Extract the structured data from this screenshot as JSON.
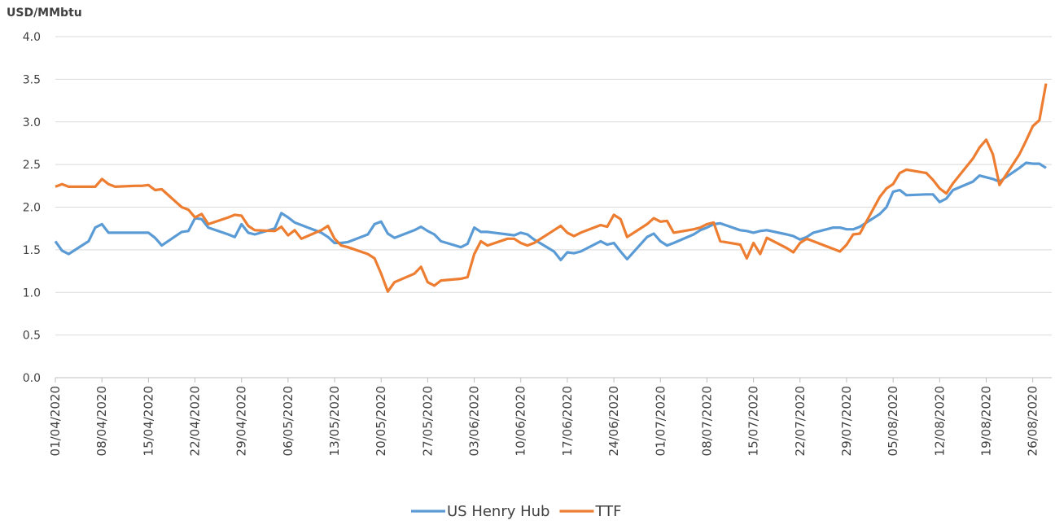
{
  "chart_data": {
    "type": "line",
    "y_label": "USD/MMbtu",
    "x": [
      "01/04/2020",
      "02/04/2020",
      "03/04/2020",
      "06/04/2020",
      "07/04/2020",
      "08/04/2020",
      "09/04/2020",
      "10/04/2020",
      "13/04/2020",
      "14/04/2020",
      "15/04/2020",
      "16/04/2020",
      "17/04/2020",
      "20/04/2020",
      "21/04/2020",
      "22/04/2020",
      "23/04/2020",
      "24/04/2020",
      "27/04/2020",
      "28/04/2020",
      "29/04/2020",
      "30/04/2020",
      "01/05/2020",
      "04/05/2020",
      "05/05/2020",
      "06/05/2020",
      "07/05/2020",
      "08/05/2020",
      "11/05/2020",
      "12/05/2020",
      "13/05/2020",
      "14/05/2020",
      "15/05/2020",
      "18/05/2020",
      "19/05/2020",
      "20/05/2020",
      "21/05/2020",
      "22/05/2020",
      "25/05/2020",
      "26/05/2020",
      "27/05/2020",
      "28/05/2020",
      "29/05/2020",
      "01/06/2020",
      "02/06/2020",
      "03/06/2020",
      "04/06/2020",
      "05/06/2020",
      "08/06/2020",
      "09/06/2020",
      "10/06/2020",
      "11/06/2020",
      "12/06/2020",
      "15/06/2020",
      "16/06/2020",
      "17/06/2020",
      "18/06/2020",
      "19/06/2020",
      "22/06/2020",
      "23/06/2020",
      "24/06/2020",
      "25/06/2020",
      "26/06/2020",
      "29/06/2020",
      "30/06/2020",
      "01/07/2020",
      "02/07/2020",
      "03/07/2020",
      "06/07/2020",
      "07/07/2020",
      "08/07/2020",
      "09/07/2020",
      "10/07/2020",
      "13/07/2020",
      "14/07/2020",
      "15/07/2020",
      "16/07/2020",
      "17/07/2020",
      "20/07/2020",
      "21/07/2020",
      "22/07/2020",
      "23/07/2020",
      "24/07/2020",
      "27/07/2020",
      "28/07/2020",
      "29/07/2020",
      "30/07/2020",
      "31/07/2020",
      "03/08/2020",
      "04/08/2020",
      "05/08/2020",
      "06/08/2020",
      "07/08/2020",
      "10/08/2020",
      "11/08/2020",
      "12/08/2020",
      "13/08/2020",
      "14/08/2020",
      "17/08/2020",
      "18/08/2020",
      "19/08/2020",
      "20/08/2020",
      "21/08/2020",
      "24/08/2020",
      "25/08/2020",
      "26/08/2020",
      "27/08/2020",
      "28/08/2020"
    ],
    "series": [
      {
        "name": "US Henry Hub",
        "color": "#5b9bd5",
        "values": [
          1.6,
          1.49,
          1.45,
          1.6,
          1.76,
          1.8,
          1.7,
          1.7,
          1.7,
          1.7,
          1.7,
          1.64,
          1.55,
          1.71,
          1.72,
          1.87,
          1.86,
          1.76,
          1.68,
          1.65,
          1.8,
          1.7,
          1.68,
          1.75,
          1.93,
          1.88,
          1.82,
          1.79,
          1.7,
          1.65,
          1.58,
          1.58,
          1.59,
          1.68,
          1.8,
          1.83,
          1.69,
          1.64,
          1.73,
          1.77,
          1.72,
          1.68,
          1.6,
          1.53,
          1.57,
          1.76,
          1.71,
          1.71,
          1.68,
          1.67,
          1.7,
          1.68,
          1.62,
          1.48,
          1.38,
          1.47,
          1.46,
          1.48,
          1.6,
          1.56,
          1.58,
          1.48,
          1.39,
          1.65,
          1.69,
          1.6,
          1.55,
          1.58,
          1.68,
          1.73,
          1.76,
          1.8,
          1.81,
          1.73,
          1.72,
          1.7,
          1.72,
          1.73,
          1.68,
          1.66,
          1.62,
          1.65,
          1.7,
          1.76,
          1.76,
          1.74,
          1.74,
          1.77,
          1.92,
          2.0,
          2.18,
          2.2,
          2.14,
          2.15,
          2.15,
          2.06,
          2.1,
          2.2,
          2.3,
          2.37,
          2.35,
          2.33,
          2.3,
          2.46,
          2.52,
          2.51,
          2.51,
          2.46
        ]
      },
      {
        "name": "TTF",
        "color": "#ed7d31",
        "values": [
          2.24,
          2.27,
          2.24,
          2.24,
          2.24,
          2.33,
          2.27,
          2.24,
          2.25,
          2.25,
          2.26,
          2.2,
          2.21,
          2.0,
          1.97,
          1.88,
          1.92,
          1.8,
          1.88,
          1.91,
          1.9,
          1.78,
          1.73,
          1.72,
          1.77,
          1.67,
          1.73,
          1.63,
          1.73,
          1.78,
          1.63,
          1.55,
          1.53,
          1.45,
          1.4,
          1.22,
          1.01,
          1.12,
          1.22,
          1.3,
          1.12,
          1.08,
          1.14,
          1.16,
          1.18,
          1.45,
          1.6,
          1.55,
          1.63,
          1.63,
          1.58,
          1.55,
          1.58,
          1.73,
          1.78,
          1.7,
          1.66,
          1.7,
          1.79,
          1.77,
          1.91,
          1.86,
          1.65,
          1.8,
          1.87,
          1.83,
          1.84,
          1.7,
          1.74,
          1.76,
          1.8,
          1.82,
          1.6,
          1.56,
          1.4,
          1.58,
          1.45,
          1.64,
          1.52,
          1.47,
          1.58,
          1.63,
          1.6,
          1.51,
          1.48,
          1.56,
          1.68,
          1.69,
          2.12,
          2.22,
          2.27,
          2.4,
          2.44,
          2.4,
          2.32,
          2.22,
          2.16,
          2.28,
          2.57,
          2.7,
          2.79,
          2.62,
          2.26,
          2.62,
          2.78,
          2.95,
          3.02,
          3.45
        ]
      }
    ],
    "xlim": [
      "01/04/2020",
      "28/08/2020"
    ],
    "xticks": [
      "01/04/2020",
      "08/04/2020",
      "15/04/2020",
      "22/04/2020",
      "29/04/2020",
      "06/05/2020",
      "13/05/2020",
      "20/05/2020",
      "27/05/2020",
      "03/06/2020",
      "10/06/2020",
      "17/06/2020",
      "24/06/2020",
      "01/07/2020",
      "08/07/2020",
      "15/07/2020",
      "22/07/2020",
      "29/07/2020",
      "05/08/2020",
      "12/08/2020",
      "19/08/2020",
      "26/08/2020"
    ],
    "ylim": [
      0,
      4
    ],
    "yticks": [
      {
        "value": 0,
        "label": "0.0"
      },
      0.5,
      {
        "value": 1,
        "label": "1.0"
      },
      1.5,
      {
        "value": 2,
        "label": "2.0"
      },
      2.5,
      {
        "value": 3,
        "label": "3.0"
      },
      3.5,
      {
        "value": 4,
        "label": "4.0"
      }
    ],
    "grid": true,
    "legend": "bottom"
  }
}
